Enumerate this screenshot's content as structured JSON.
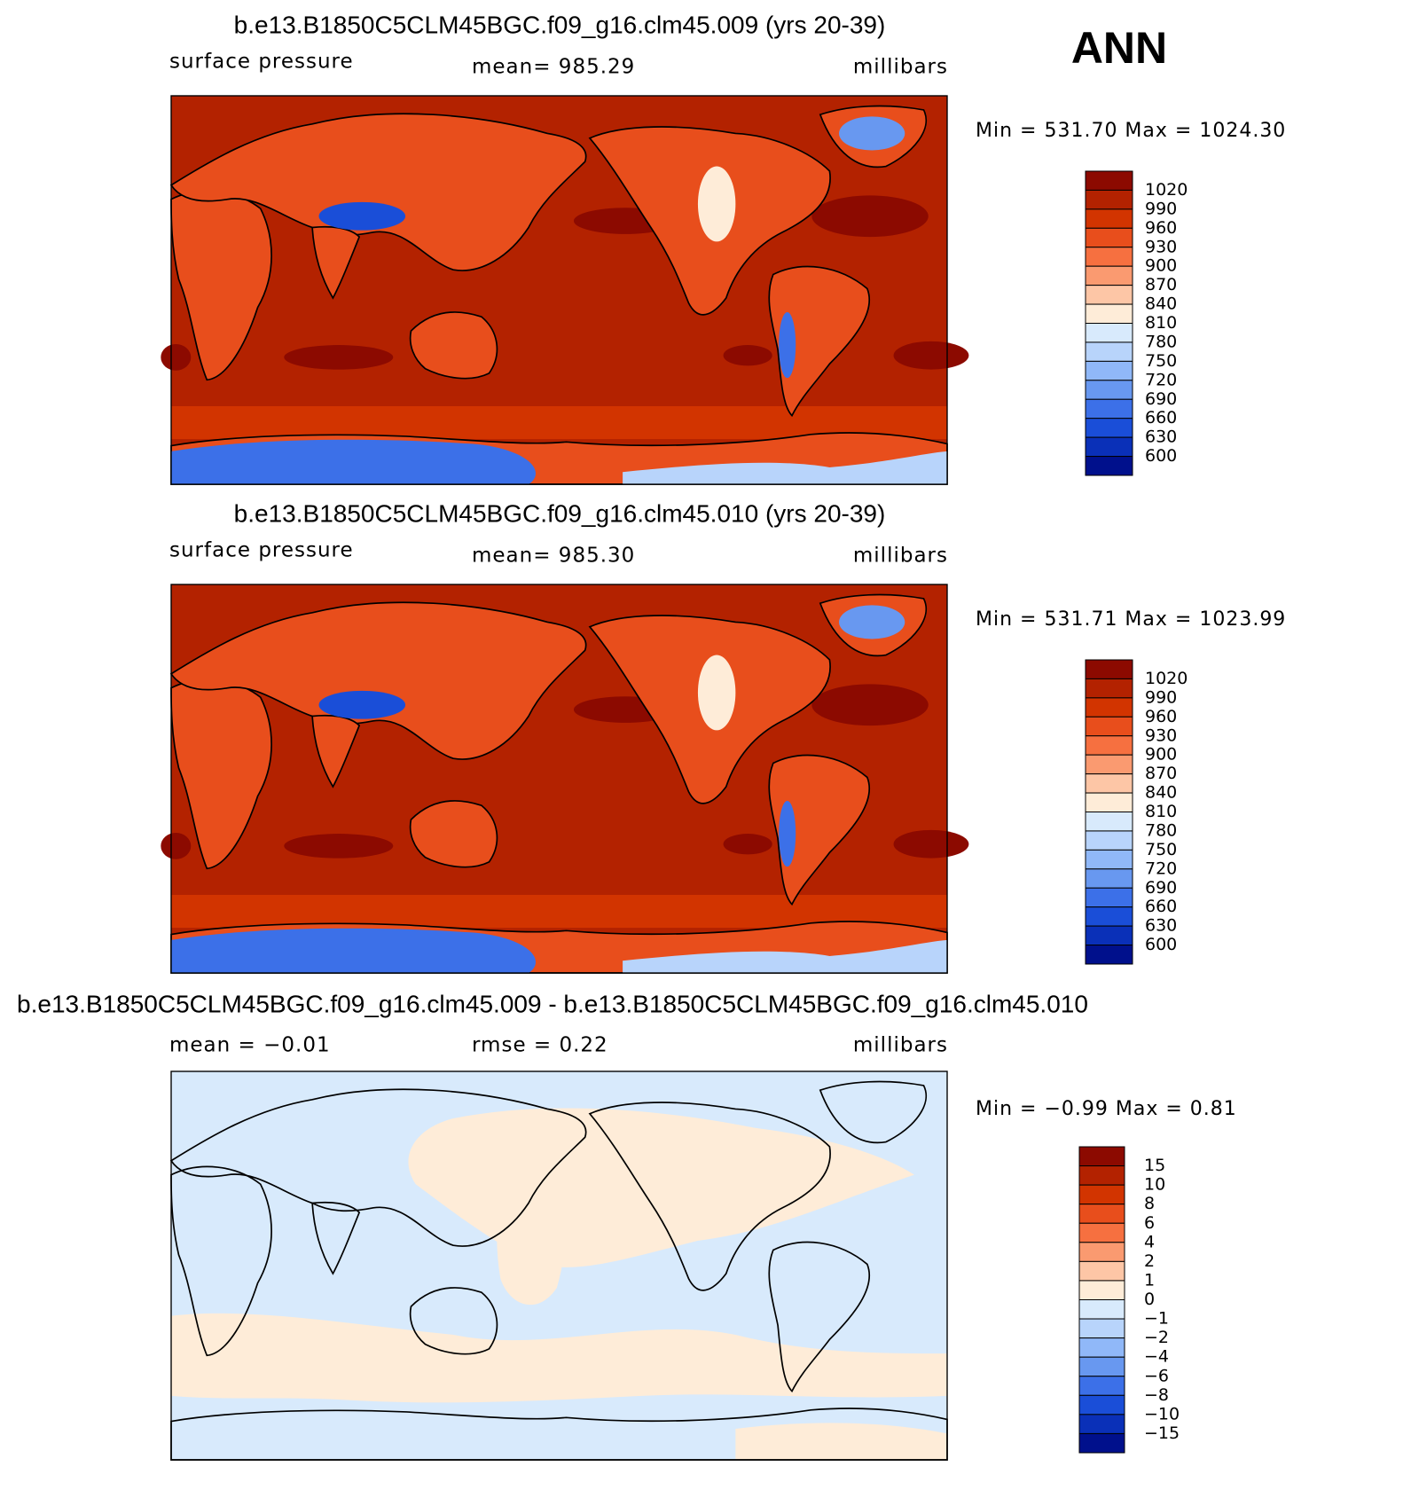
{
  "header": {
    "season": "ANN"
  },
  "panels": [
    {
      "title": "b.e13.B1850C5CLM45BGC.f09_g16.clm45.009 (yrs 20-39)",
      "variable": "surface pressure",
      "stat": "mean= 985.29",
      "units": "millibars",
      "min_max": "Min = 531.70 Max = 1024.30",
      "colorbar": {
        "labels": [
          "1020",
          "990",
          "960",
          "930",
          "900",
          "870",
          "840",
          "810",
          "780",
          "750",
          "720",
          "690",
          "660",
          "630",
          "600"
        ],
        "colors": [
          "#8c0a00",
          "#b32200",
          "#d23400",
          "#e84e1c",
          "#f67040",
          "#fa9a70",
          "#fdc6a6",
          "#feecd8",
          "#d8eafc",
          "#b8d4fb",
          "#90b8f8",
          "#6898f0",
          "#3c70e8",
          "#1a4ed8",
          "#0a30b8",
          "#00108c"
        ]
      }
    },
    {
      "title": "b.e13.B1850C5CLM45BGC.f09_g16.clm45.010 (yrs 20-39)",
      "variable": "surface pressure",
      "stat": "mean= 985.30",
      "units": "millibars",
      "min_max": "Min = 531.71 Max = 1023.99",
      "colorbar": {
        "labels": [
          "1020",
          "990",
          "960",
          "930",
          "900",
          "870",
          "840",
          "810",
          "780",
          "750",
          "720",
          "690",
          "660",
          "630",
          "600"
        ],
        "colors": [
          "#8c0a00",
          "#b32200",
          "#d23400",
          "#e84e1c",
          "#f67040",
          "#fa9a70",
          "#fdc6a6",
          "#feecd8",
          "#d8eafc",
          "#b8d4fb",
          "#90b8f8",
          "#6898f0",
          "#3c70e8",
          "#1a4ed8",
          "#0a30b8",
          "#00108c"
        ]
      }
    },
    {
      "title": "b.e13.B1850C5CLM45BGC.f09_g16.clm45.009 - b.e13.B1850C5CLM45BGC.f09_g16.clm45.010",
      "stat": "mean = −0.01",
      "stat2": "rmse = 0.22",
      "units": "millibars",
      "min_max": "Min = −0.99 Max = 0.81",
      "colorbar": {
        "labels": [
          "15",
          "10",
          "8",
          "6",
          "4",
          "2",
          "1",
          "0",
          "−1",
          "−2",
          "−4",
          "−6",
          "−8",
          "−10",
          "−15"
        ],
        "colors": [
          "#8c0a00",
          "#b32200",
          "#d23400",
          "#e84e1c",
          "#f67040",
          "#fa9a70",
          "#fdc6a6",
          "#feecd8",
          "#d8eafc",
          "#b8d4fb",
          "#90b8f8",
          "#6898f0",
          "#3c70e8",
          "#1a4ed8",
          "#0a30b8",
          "#00108c"
        ]
      }
    }
  ]
}
